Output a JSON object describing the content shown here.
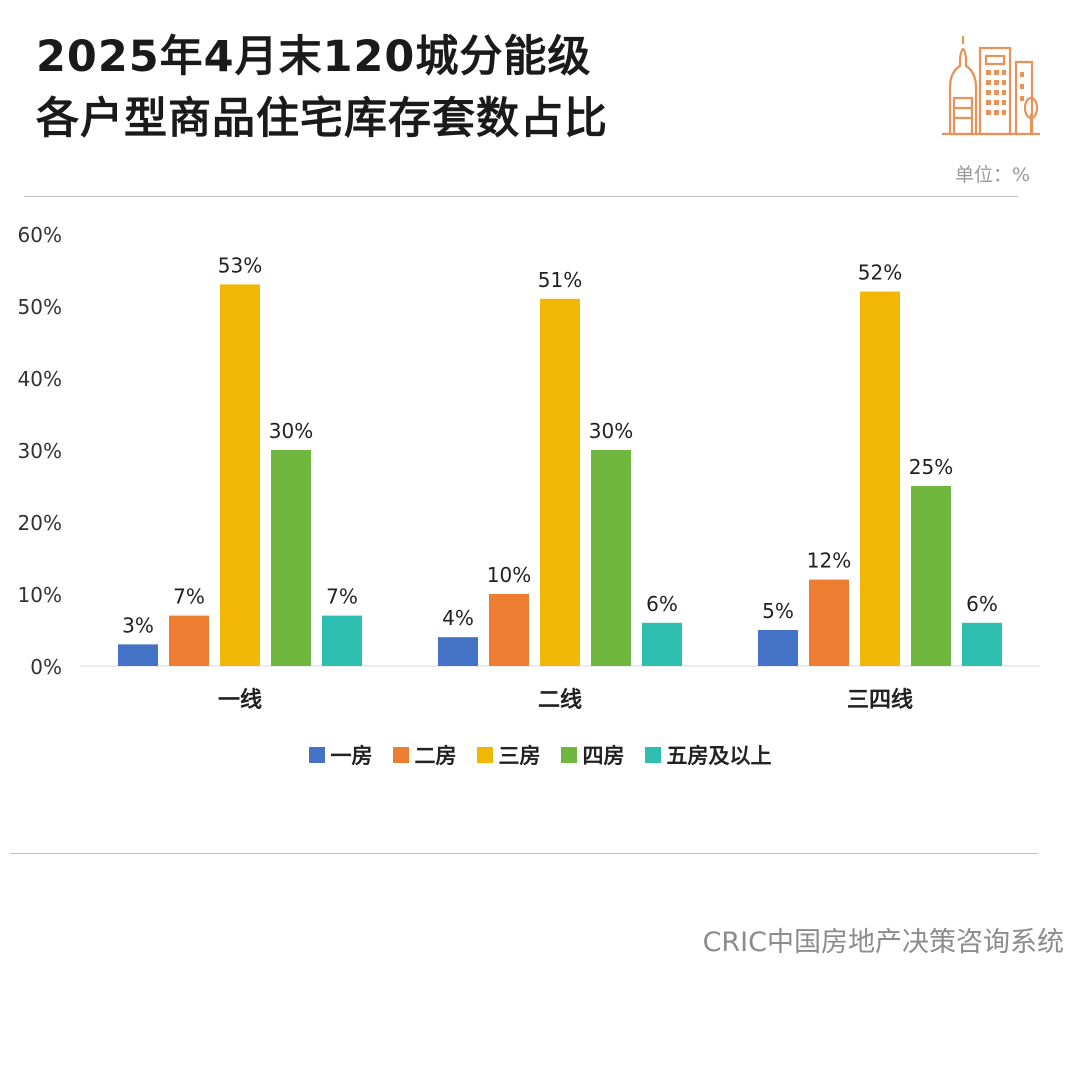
{
  "header": {
    "title_line1": "2025年4月末120城分能级",
    "title_line2": "各户型商品住宅库存套数占比",
    "unit": "单位：%"
  },
  "logo_icon": "city-buildings-icon",
  "footer": {
    "source": "CRIC中国房地产决策咨询系统"
  },
  "chart_data": {
    "type": "bar",
    "title": "2025年4月末120城分能级各户型商品住宅库存套数占比",
    "categories": [
      "一线",
      "二线",
      "三四线"
    ],
    "series": [
      {
        "name": "一房",
        "color": "#4472c4",
        "values": [
          3,
          4,
          5
        ],
        "labels": [
          "3%",
          "4%",
          "5%"
        ]
      },
      {
        "name": "二房",
        "color": "#ed7d31",
        "values": [
          7,
          10,
          12
        ],
        "labels": [
          "7%",
          "10%",
          "12%"
        ]
      },
      {
        "name": "三房",
        "color": "#f2b705",
        "values": [
          53,
          51,
          52
        ],
        "labels": [
          "53%",
          "51%",
          "52%"
        ]
      },
      {
        "name": "四房",
        "color": "#70b73f",
        "values": [
          30,
          30,
          25
        ],
        "labels": [
          "30%",
          "30%",
          "25%"
        ]
      },
      {
        "name": "五房及以上",
        "color": "#2ebfb0",
        "values": [
          7,
          6,
          6
        ],
        "labels": [
          "7%",
          "6%",
          "6%"
        ]
      }
    ],
    "ylim": [
      0,
      60
    ],
    "yticks": [
      0,
      10,
      20,
      30,
      40,
      50,
      60
    ],
    "ytick_labels": [
      "0%",
      "10%",
      "20%",
      "30%",
      "40%",
      "50%",
      "60%"
    ],
    "grid": false,
    "legend": "bottom-center",
    "xlabel": "",
    "ylabel": ""
  }
}
